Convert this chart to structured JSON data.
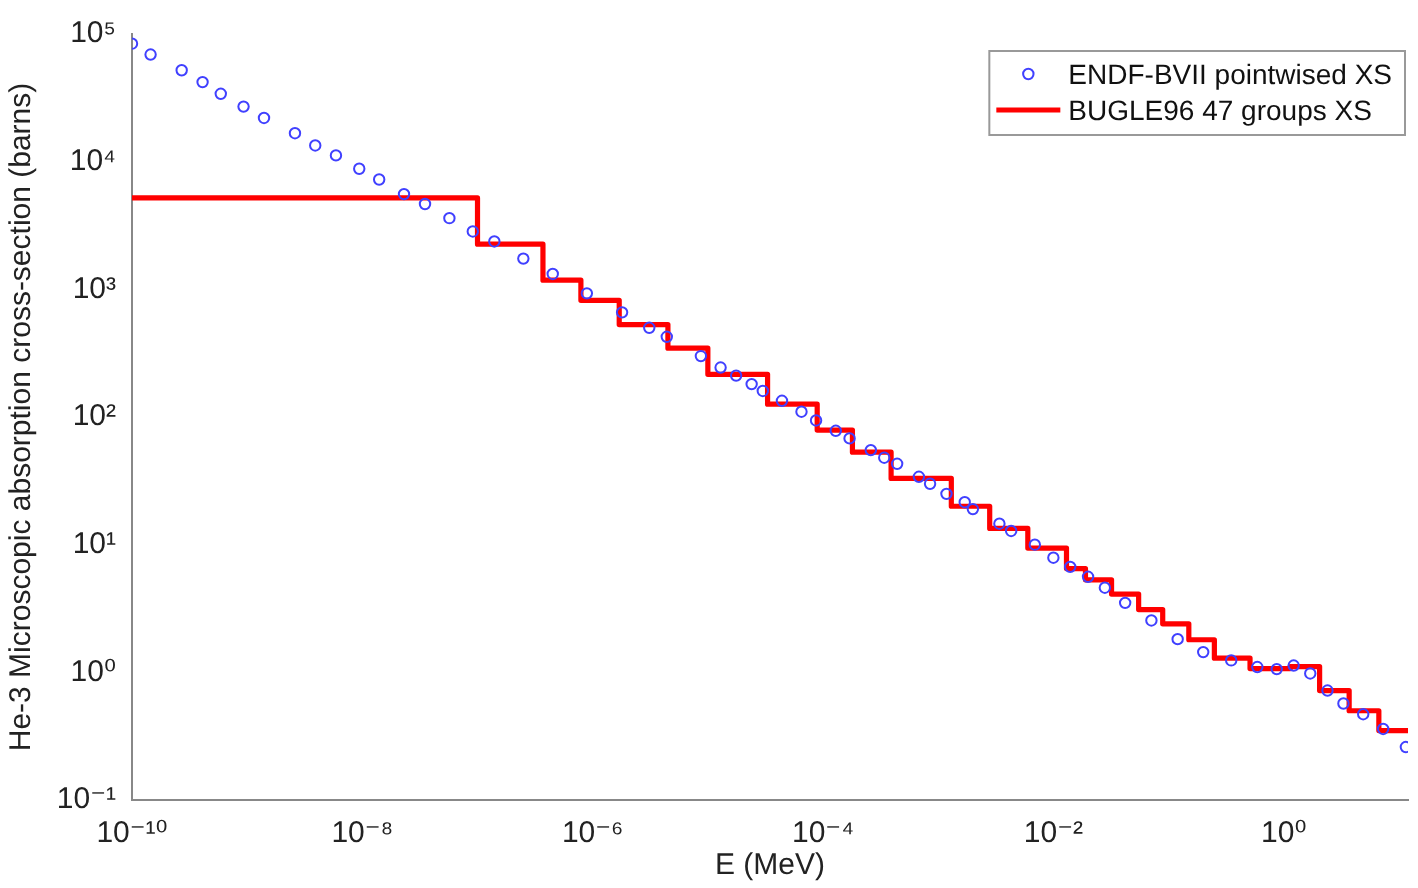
{
  "chart_data": {
    "type": "scatter",
    "xlabel": "E (MeV)",
    "ylabel": "He-3 Microscopic absorption cross-section (barns)",
    "log": "xy",
    "xlim": [
      1e-10,
      12
    ],
    "ylim": [
      0.1,
      100000
    ],
    "xticks": [
      {
        "value": 1e-10,
        "label": "10⁻¹⁰"
      },
      {
        "value": 1e-08,
        "label": "10⁻⁸"
      },
      {
        "value": 1e-06,
        "label": "10⁻⁶"
      },
      {
        "value": 0.0001,
        "label": "10⁻⁴"
      },
      {
        "value": 0.01,
        "label": "10⁻²"
      },
      {
        "value": 1,
        "label": "10⁰"
      }
    ],
    "yticks": [
      {
        "value": 0.1,
        "label": "10⁻¹"
      },
      {
        "value": 1,
        "label": "10⁰"
      },
      {
        "value": 10,
        "label": "10¹"
      },
      {
        "value": 100,
        "label": "10²"
      },
      {
        "value": 1000,
        "label": "10³"
      },
      {
        "value": 10000,
        "label": "10⁴"
      },
      {
        "value": 100000,
        "label": "10⁵"
      }
    ],
    "grid": false,
    "legend": "top right",
    "series": [
      {
        "name": "ENDF-BVII pointwised XS",
        "marker": "circle",
        "color": "#4040ff",
        "x": [
          1e-10,
          1.45e-10,
          2.7e-10,
          4.1e-10,
          5.9e-10,
          9.3e-10,
          1.4e-09,
          2.6e-09,
          3.9e-09,
          5.9e-09,
          9.4e-09,
          1.4e-08,
          2.3e-08,
          3.5e-08,
          5.7e-08,
          9.1e-08,
          1.4e-07,
          2.5e-07,
          4.5e-07,
          8.9e-07,
          1.8e-06,
          3.1e-06,
          4.4e-06,
          8.7e-06,
          1.29e-05,
          1.76e-05,
          2.4e-05,
          3e-05,
          4.4e-05,
          6.5e-05,
          8.7e-05,
          0.000129,
          0.00017,
          0.00026,
          0.00034,
          0.00044,
          0.00068,
          0.00085,
          0.00118,
          0.0017,
          0.002,
          0.0034,
          0.0043,
          0.0069,
          0.01,
          0.014,
          0.02,
          0.028,
          0.042,
          0.071,
          0.12,
          0.2,
          0.35,
          0.59,
          0.87,
          1.22,
          1.7,
          2.4,
          3.3,
          4.9,
          7.3,
          11.5
        ],
        "values": [
          84000,
          69000,
          52000,
          42000,
          34000,
          27000,
          22000,
          16700,
          13400,
          11200,
          8800,
          7250,
          5570,
          4660,
          3610,
          2840,
          2370,
          1740,
          1320,
          930,
          660,
          500,
          425,
          300,
          244,
          211,
          181,
          160,
          134,
          110,
          94,
          78,
          68,
          55,
          48,
          43,
          34,
          30,
          25,
          21.5,
          19,
          14.6,
          12.8,
          10,
          7.9,
          6.7,
          5.6,
          4.6,
          3.5,
          2.55,
          1.82,
          1.44,
          1.24,
          1.1,
          1.06,
          1.13,
          0.98,
          0.72,
          0.57,
          0.47,
          0.36,
          0.26
        ]
      },
      {
        "name": "BUGLE96 47 groups XS",
        "type": "step",
        "line_style": "solid",
        "color": "#ff0000",
        "x": [
          1e-10,
          1e-07,
          3.7e-07,
          7.9e-07,
          1.7e-06,
          4.5e-06,
          1e-05,
          3.3e-05,
          8.9e-05,
          0.00018,
          0.00039,
          0.0013,
          0.0028,
          0.006,
          0.013,
          0.019,
          0.032,
          0.055,
          0.089,
          0.15,
          0.25,
          0.51,
          1.14,
          2.05,
          3.7,
          6.7,
          12
        ],
        "values": [
          5200,
          2260,
          1180,
          820,
          530,
          346,
          216,
          126,
          79,
          53,
          33,
          20,
          13.4,
          9.4,
          6.5,
          5.3,
          4.1,
          3.1,
          2.4,
          1.8,
          1.29,
          1.07,
          1.11,
          0.72,
          0.5,
          0.35,
          0.35
        ]
      }
    ]
  }
}
